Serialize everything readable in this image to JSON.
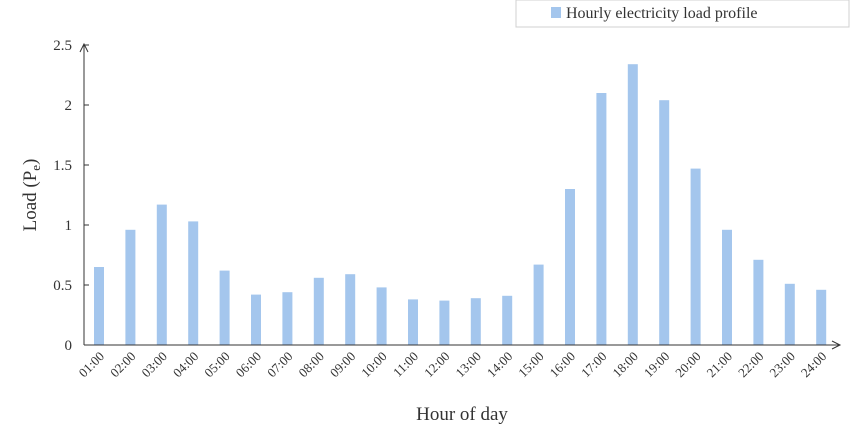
{
  "chart_data": {
    "type": "bar",
    "title": "",
    "xlabel": "Hour of day",
    "ylabel": "Load (P",
    "ylabel_subscript": "e",
    "ylabel_close": ")",
    "ylim": [
      0,
      2.5
    ],
    "yticks": [
      "0",
      "0.5",
      "1",
      "1.5",
      "2",
      "2.5"
    ],
    "grid": false,
    "legend_position": "top-right",
    "bar_color": "#a4c6ed",
    "categories": [
      "01:00",
      "02:00",
      "03:00",
      "04:00",
      "05:00",
      "06:00",
      "07:00",
      "08:00",
      "09:00",
      "10:00",
      "11:00",
      "12:00",
      "13:00",
      "14:00",
      "15:00",
      "16:00",
      "17:00",
      "18:00",
      "19:00",
      "20:00",
      "21:00",
      "22:00",
      "23:00",
      "24:00"
    ],
    "series": [
      {
        "name": "Hourly electricity load profile",
        "values": [
          0.65,
          0.96,
          1.17,
          1.03,
          0.62,
          0.42,
          0.44,
          0.56,
          0.59,
          0.48,
          0.38,
          0.37,
          0.39,
          0.41,
          0.67,
          1.3,
          2.1,
          2.34,
          2.04,
          1.47,
          0.96,
          0.71,
          0.51,
          0.46
        ]
      }
    ]
  }
}
